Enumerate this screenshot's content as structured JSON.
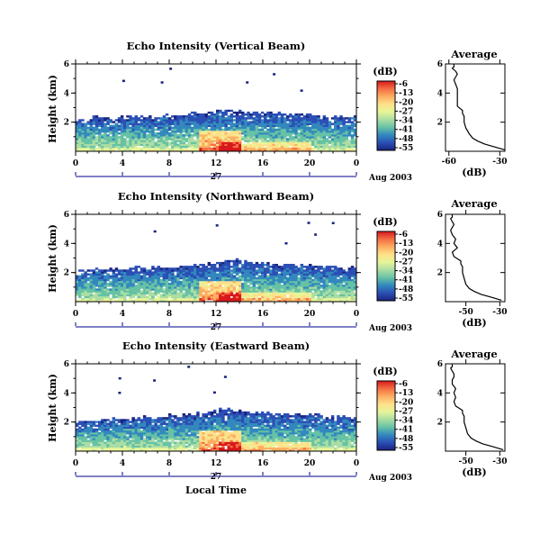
{
  "figure": {
    "date_label": "Aug 2003",
    "day_label": "27",
    "xlabel": "Local Time"
  },
  "colorbar": {
    "unit": "(dB)",
    "ticks": [
      "-6",
      "-13",
      "-20",
      "-27",
      "-34",
      "-41",
      "-48",
      "-55"
    ],
    "colors": [
      "#d7191c",
      "#f46d43",
      "#fdae61",
      "#fee08b",
      "#e6f598",
      "#abdda4",
      "#66c2a5",
      "#3288bd",
      "#2b4fb5",
      "#1a237e"
    ]
  },
  "chart_data": [
    {
      "type": "heatmap",
      "title": "Echo Intensity (Vertical Beam)",
      "ylabel": "Height (km)",
      "xlim": [
        0,
        24
      ],
      "ylim": [
        0,
        6
      ],
      "xticks": [
        "0",
        "4",
        "8",
        "12",
        "16",
        "20",
        "0"
      ],
      "yticks": [
        "2",
        "4",
        "6"
      ],
      "echo_top_km": [
        2.1,
        2.2,
        2.3,
        2.2,
        2.3,
        2.4,
        2.3,
        2.4,
        2.4,
        2.5,
        2.6,
        2.6,
        2.8,
        2.7,
        2.7,
        2.6,
        2.6,
        2.6,
        2.5,
        2.5,
        2.4,
        2.4,
        2.3,
        2.3,
        2.3
      ]
    },
    {
      "type": "heatmap",
      "title": "Echo Intensity (Northward Beam)",
      "ylabel": "Height (km)",
      "xlim": [
        0,
        24
      ],
      "ylim": [
        0,
        6
      ],
      "xticks": [
        "0",
        "4",
        "8",
        "12",
        "16",
        "20",
        "0"
      ],
      "yticks": [
        "2",
        "4",
        "6"
      ],
      "echo_top_km": [
        2.1,
        2.1,
        2.2,
        2.2,
        2.2,
        2.3,
        2.2,
        2.3,
        2.3,
        2.4,
        2.4,
        2.5,
        2.7,
        2.8,
        2.8,
        2.6,
        2.6,
        2.5,
        2.5,
        2.5,
        2.4,
        2.4,
        2.4,
        2.3,
        2.3
      ]
    },
    {
      "type": "heatmap",
      "title": "Echo Intensity (Eastward Beam)",
      "ylabel": "Height (km)",
      "xlim": [
        0,
        24
      ],
      "ylim": [
        0,
        6
      ],
      "xticks": [
        "0",
        "4",
        "8",
        "12",
        "16",
        "20",
        "0"
      ],
      "yticks": [
        "2",
        "4",
        "6"
      ],
      "echo_top_km": [
        2.0,
        2.1,
        2.1,
        2.2,
        2.2,
        2.2,
        2.3,
        2.3,
        2.4,
        2.4,
        2.5,
        2.6,
        2.8,
        2.8,
        2.7,
        2.6,
        2.6,
        2.5,
        2.5,
        2.5,
        2.4,
        2.4,
        2.3,
        2.3,
        2.3
      ]
    },
    {
      "type": "line",
      "title": "Average",
      "xlabel": "(dB)",
      "xlim": [
        -62,
        -27
      ],
      "ylim": [
        0,
        6
      ],
      "xticks": [
        "-60",
        "-30"
      ],
      "yticks": [
        "2",
        "4",
        "6"
      ],
      "x": [
        -27,
        -33,
        -39,
        -43,
        -46,
        -48,
        -50,
        -51,
        -51,
        -52,
        -52,
        -55,
        -55,
        -55,
        -55,
        -55,
        -56,
        -57,
        -56,
        -55,
        -56,
        -58,
        -57,
        -57,
        -57
      ],
      "y": [
        0.1,
        0.3,
        0.5,
        0.7,
        0.9,
        1.2,
        1.6,
        2.0,
        2.4,
        2.6,
        2.8,
        3.1,
        3.4,
        3.7,
        4.0,
        4.3,
        4.6,
        4.9,
        5.1,
        5.3,
        5.5,
        5.7,
        5.8,
        5.9,
        6.0
      ]
    },
    {
      "type": "line",
      "title": "Average",
      "xlabel": "(dB)",
      "xlim": [
        -62,
        -27
      ],
      "ylim": [
        0,
        6
      ],
      "xticks": [
        "-50",
        "-30"
      ],
      "yticks": [
        "2",
        "4",
        "6"
      ],
      "x": [
        -29,
        -35,
        -41,
        -45,
        -48,
        -50,
        -51,
        -52,
        -52,
        -53,
        -53,
        -57,
        -58,
        -55,
        -57,
        -56,
        -58,
        -59,
        -58,
        -57,
        -58,
        -59,
        -58,
        -58,
        -58
      ],
      "y": [
        0.1,
        0.3,
        0.5,
        0.7,
        0.9,
        1.2,
        1.6,
        2.0,
        2.4,
        2.6,
        2.8,
        3.1,
        3.4,
        3.7,
        4.0,
        4.3,
        4.6,
        4.9,
        5.1,
        5.3,
        5.5,
        5.7,
        5.8,
        5.9,
        6.0
      ]
    },
    {
      "type": "line",
      "title": "Average",
      "xlabel": "(dB)",
      "xlim": [
        -62,
        -27
      ],
      "ylim": [
        0,
        6
      ],
      "xticks": [
        "-50",
        "-30"
      ],
      "yticks": [
        "2",
        "4",
        "6"
      ],
      "x": [
        -28,
        -34,
        -40,
        -44,
        -47,
        -49,
        -50,
        -51,
        -51,
        -52,
        -52,
        -56,
        -57,
        -56,
        -57,
        -56,
        -58,
        -58,
        -57,
        -57,
        -58,
        -59,
        -58,
        -58,
        -58
      ],
      "y": [
        0.1,
        0.3,
        0.5,
        0.7,
        0.9,
        1.2,
        1.6,
        2.0,
        2.4,
        2.6,
        2.8,
        3.1,
        3.4,
        3.7,
        4.0,
        4.3,
        4.6,
        4.9,
        5.1,
        5.3,
        5.5,
        5.7,
        5.8,
        5.9,
        6.0
      ]
    }
  ]
}
